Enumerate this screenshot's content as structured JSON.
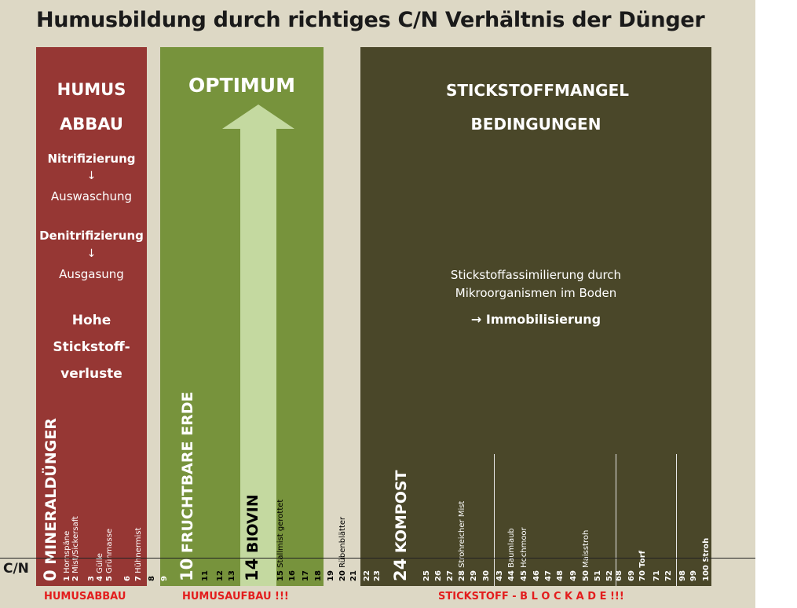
{
  "title": "Humusbildung durch richtiges C/N Verhältnis der Dünger",
  "axis_label": "C/N",
  "colors": {
    "background": "#ddd8c5",
    "humusabbau": "#963734",
    "optimum": "#77933c",
    "arrow": "#c4d9a0",
    "stickstoff": "#4a4729",
    "warning": "#e31d1d"
  },
  "panels": {
    "red": {
      "line1": "HUMUS",
      "line2": "ABBAU",
      "nitri": "Nitrifizierung",
      "arrow1": "↓",
      "ausw": "Auswaschung",
      "denitri": "Denitrifizierung",
      "arrow2": "↓",
      "ausg": "Ausgasung",
      "hohe": "Hohe",
      "stick": "Stickstoff-",
      "verl": "verluste"
    },
    "green": {
      "title": "OPTIMUM"
    },
    "dark": {
      "line1": "STICKSTOFFMANGEL",
      "line2": "BEDINGUNGEN",
      "desc1": "Stickstoffassimilierung durch",
      "desc2": "Mikroorganismen im Boden",
      "result": "→ Immobilisierung"
    }
  },
  "scale": [
    {
      "n": "0",
      "label": "MINERALDÜNGER",
      "big": true,
      "color": "w"
    },
    {
      "n": "1",
      "label": "Hornspäne",
      "color": "w"
    },
    {
      "n": "2",
      "label": "Mist/Sickersaft",
      "color": "w"
    },
    {
      "n": "3",
      "label": "",
      "color": "w"
    },
    {
      "n": "4",
      "label": "Gülle",
      "color": "w"
    },
    {
      "n": "5",
      "label": "Grünmasse",
      "color": "w"
    },
    {
      "n": "6",
      "label": "",
      "color": "w"
    },
    {
      "n": "7",
      "label": "Hühnermist",
      "color": "w"
    },
    {
      "n": "8",
      "label": "",
      "color": "b"
    },
    {
      "n": "9",
      "label": "",
      "color": "w"
    },
    {
      "n": "10",
      "label": "FRUCHTBARE ERDE",
      "big": true,
      "color": "w"
    },
    {
      "n": "11",
      "label": "",
      "color": "b"
    },
    {
      "n": "12",
      "label": "",
      "color": "b"
    },
    {
      "n": "13",
      "label": "",
      "color": "b"
    },
    {
      "n": "14",
      "label": "BIOVIN",
      "big": true,
      "color": "b"
    },
    {
      "n": "15",
      "label": "Stallmist gerottet",
      "color": "b"
    },
    {
      "n": "16",
      "label": "",
      "color": "b"
    },
    {
      "n": "17",
      "label": "",
      "color": "b"
    },
    {
      "n": "18",
      "label": "",
      "color": "b"
    },
    {
      "n": "19",
      "label": "",
      "color": "b"
    },
    {
      "n": "20",
      "label": "Rübenblätter",
      "color": "b"
    },
    {
      "n": "21",
      "label": "",
      "color": "b"
    },
    {
      "n": "22",
      "label": "",
      "color": "w"
    },
    {
      "n": "23",
      "label": "",
      "color": "w"
    },
    {
      "n": "24",
      "label": "KOMPOST",
      "big": true,
      "color": "w"
    },
    {
      "n": "25",
      "label": "",
      "color": "w"
    },
    {
      "n": "26",
      "label": "",
      "color": "w"
    },
    {
      "n": "27",
      "label": "",
      "color": "w"
    },
    {
      "n": "28",
      "label": "Strohreicher Mist",
      "color": "w"
    },
    {
      "n": "29",
      "label": "",
      "color": "w"
    },
    {
      "n": "30",
      "label": "",
      "color": "w"
    },
    {
      "n": "43",
      "label": "",
      "color": "w"
    },
    {
      "n": "44",
      "label": "Baumlaub",
      "color": "w"
    },
    {
      "n": "45",
      "label": "Hochmoor",
      "color": "w"
    },
    {
      "n": "46",
      "label": "",
      "color": "w"
    },
    {
      "n": "47",
      "label": "",
      "color": "w"
    },
    {
      "n": "48",
      "label": "",
      "color": "w"
    },
    {
      "n": "49",
      "label": "",
      "color": "w"
    },
    {
      "n": "50",
      "label": "Maisstroh",
      "color": "w"
    },
    {
      "n": "51",
      "label": "",
      "color": "w"
    },
    {
      "n": "52",
      "label": "",
      "color": "w"
    },
    {
      "n": "68",
      "label": "",
      "color": "w"
    },
    {
      "n": "69",
      "label": "",
      "color": "w"
    },
    {
      "n": "70",
      "label": "Torf",
      "color": "w",
      "bold": true
    },
    {
      "n": "71",
      "label": "",
      "color": "w"
    },
    {
      "n": "72",
      "label": "",
      "color": "w"
    },
    {
      "n": "98",
      "label": "",
      "color": "w"
    },
    {
      "n": "99",
      "label": "",
      "color": "w"
    },
    {
      "n": "100",
      "label": "Stroh",
      "color": "w",
      "bold": true
    }
  ],
  "bottom": {
    "humusabbau": "HUMUSABBAU",
    "humusaufbau": "HUMUSAUFBAU !!!",
    "blockade": "STICKSTOFF - B L O C K A D E  !!!"
  }
}
